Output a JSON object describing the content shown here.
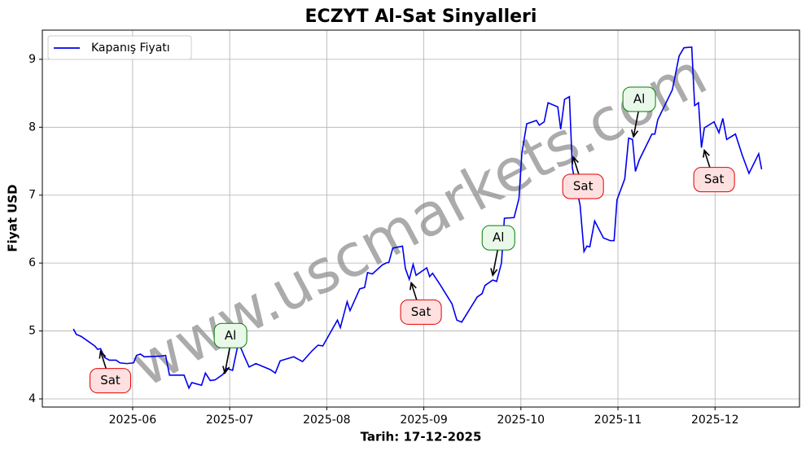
{
  "chart_data": {
    "type": "line",
    "title": "ECZYT Al-Sat Sinyalleri",
    "xlabel": "Tarih: 17-12-2025",
    "ylabel": "Fiyat USD",
    "watermark": "www.uscmarkets.com",
    "legend": "upper left",
    "grid": true,
    "xlim": [
      5.07,
      12.87
    ],
    "ylim": [
      3.88,
      9.43
    ],
    "xticks": [
      {
        "value": 6,
        "label": "2025-06"
      },
      {
        "value": 7,
        "label": "2025-07"
      },
      {
        "value": 8,
        "label": "2025-08"
      },
      {
        "value": 9,
        "label": "2025-09"
      },
      {
        "value": 10,
        "label": "2025-10"
      },
      {
        "value": 11,
        "label": "2025-11"
      },
      {
        "value": 12,
        "label": "2025-12"
      }
    ],
    "yticks": [
      4,
      5,
      6,
      7,
      8,
      9
    ],
    "x": [
      5.39,
      5.42,
      5.47,
      5.54,
      5.61,
      5.64,
      5.67,
      5.71,
      5.76,
      5.83,
      5.87,
      5.94,
      6.01,
      6.04,
      6.08,
      6.12,
      6.29,
      6.34,
      6.38,
      6.53,
      6.58,
      6.61,
      6.71,
      6.75,
      6.8,
      6.85,
      6.93,
      6.97,
      7.03,
      7.08,
      7.1,
      7.15,
      7.2,
      7.27,
      7.42,
      7.47,
      7.52,
      7.66,
      7.71,
      7.75,
      7.85,
      7.91,
      7.96,
      8.11,
      8.14,
      8.21,
      8.24,
      8.34,
      8.39,
      8.42,
      8.47,
      8.57,
      8.61,
      8.64,
      8.68,
      8.78,
      8.81,
      8.85,
      8.89,
      8.92,
      9.03,
      9.06,
      9.09,
      9.16,
      9.29,
      9.34,
      9.39,
      9.55,
      9.6,
      9.63,
      9.71,
      9.75,
      9.8,
      9.83,
      9.93,
      9.98,
      10.01,
      10.06,
      10.16,
      10.19,
      10.24,
      10.28,
      10.38,
      10.41,
      10.45,
      10.5,
      10.53,
      10.61,
      10.65,
      10.68,
      10.71,
      10.76,
      10.85,
      10.92,
      10.96,
      10.99,
      11.07,
      11.11,
      11.15,
      11.18,
      11.22,
      11.35,
      11.38,
      11.41,
      11.56,
      11.63,
      11.68,
      11.76,
      11.79,
      11.83,
      11.86,
      11.89,
      11.99,
      12.04,
      12.08,
      12.12,
      12.21,
      12.28,
      12.35,
      12.45,
      12.48
    ],
    "series": [
      {
        "name": "Kapanış Fiyatı",
        "color": "#0000ee",
        "values": [
          5.03,
          4.95,
          4.92,
          4.85,
          4.78,
          4.73,
          4.74,
          4.61,
          4.57,
          4.57,
          4.53,
          4.52,
          4.53,
          4.64,
          4.66,
          4.62,
          4.63,
          4.64,
          4.35,
          4.35,
          4.16,
          4.24,
          4.2,
          4.38,
          4.27,
          4.28,
          4.36,
          4.45,
          4.42,
          4.76,
          4.8,
          4.63,
          4.47,
          4.52,
          4.43,
          4.38,
          4.56,
          4.62,
          4.58,
          4.55,
          4.71,
          4.79,
          4.78,
          5.16,
          5.05,
          5.43,
          5.3,
          5.62,
          5.64,
          5.86,
          5.84,
          5.97,
          6.0,
          6.01,
          6.22,
          6.25,
          5.92,
          5.76,
          5.98,
          5.82,
          5.93,
          5.8,
          5.85,
          5.7,
          5.4,
          5.16,
          5.13,
          5.5,
          5.55,
          5.67,
          5.75,
          5.73,
          6.0,
          6.66,
          6.67,
          6.95,
          7.62,
          8.05,
          8.1,
          8.03,
          8.08,
          8.36,
          8.3,
          7.97,
          8.41,
          8.45,
          7.4,
          6.85,
          6.17,
          6.25,
          6.24,
          6.62,
          6.37,
          6.33,
          6.33,
          6.93,
          7.24,
          7.84,
          7.82,
          7.35,
          7.52,
          7.9,
          7.9,
          8.11,
          8.55,
          9.05,
          9.17,
          9.18,
          8.32,
          8.36,
          7.7,
          7.99,
          8.08,
          7.92,
          8.13,
          7.82,
          7.9,
          7.59,
          7.32,
          7.61,
          7.38
        ]
      }
    ],
    "annotations": [
      {
        "label": "Sat",
        "x": 5.67,
        "y": 4.7,
        "arrow": "up",
        "color": "red"
      },
      {
        "label": "Al",
        "x": 6.95,
        "y": 4.38,
        "arrow": "down",
        "color": "green"
      },
      {
        "label": "Sat",
        "x": 8.87,
        "y": 5.71,
        "arrow": "up",
        "color": "red"
      },
      {
        "label": "Al",
        "x": 9.71,
        "y": 5.82,
        "arrow": "down",
        "color": "green"
      },
      {
        "label": "Sat",
        "x": 10.54,
        "y": 7.56,
        "arrow": "up",
        "color": "red"
      },
      {
        "label": "Al",
        "x": 11.16,
        "y": 7.86,
        "arrow": "down",
        "color": "green"
      },
      {
        "label": "Sat",
        "x": 11.89,
        "y": 7.66,
        "arrow": "up",
        "color": "red"
      }
    ]
  }
}
